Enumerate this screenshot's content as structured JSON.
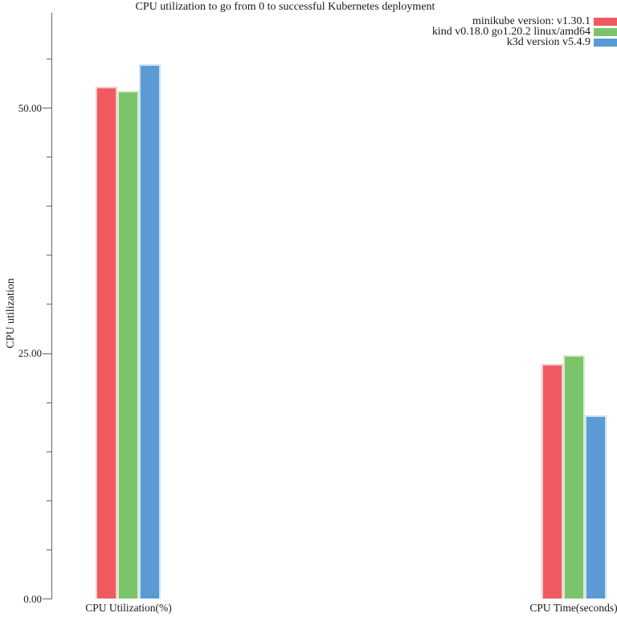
{
  "chart_data": {
    "type": "bar",
    "title": "CPU utilization to go from 0 to successful Kubernetes deployment",
    "ylabel": "CPU utilization",
    "xlabel": "",
    "categories": [
      "CPU Utilization(%)",
      "CPU Time(seconds)"
    ],
    "series": [
      {
        "name": "minikube version: v1.30.1",
        "color": "#ef5a61",
        "edge_color": "#f9c9cb",
        "values": [
          52.2,
          23.9
        ]
      },
      {
        "name": "kind v0.18.0 go1.20.2 linux/amd64",
        "color": "#7cc46b",
        "edge_color": "#d8eecd",
        "values": [
          51.8,
          24.8
        ]
      },
      {
        "name": "k3d version v5.4.9",
        "color": "#5b9bd5",
        "edge_color": "#cfe1f2",
        "values": [
          54.5,
          18.7
        ]
      }
    ],
    "ylim": [
      0,
      59.6
    ],
    "yticks": {
      "major": [
        0,
        25,
        50
      ],
      "major_labels": [
        "0.00",
        "25.00",
        "50.00"
      ],
      "minor_step": 5
    },
    "legend_position": "top-right",
    "grid": false,
    "background_color": "#ffffff"
  }
}
